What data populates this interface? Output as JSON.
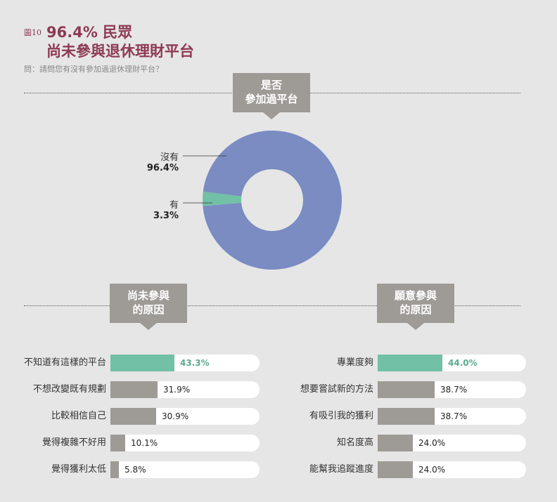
{
  "header": {
    "fig_label": "圖10",
    "title_line1": "96.4% 民眾",
    "title_line2": "尚未參與退休理財平台",
    "question": "問：請問您有沒有參加過退休理財平台？"
  },
  "colors": {
    "accent": "#8e3a54",
    "pie_no": "#7a8cc2",
    "pie_yes": "#72c0a6",
    "bar_highlight": "#72c0a6",
    "bar_default": "#9e9a96",
    "banner": "#9e9a96"
  },
  "banners": {
    "center_line1": "是否",
    "center_line2": "參加過平台",
    "left_line1": "尚未參與",
    "left_line2": "的原因",
    "right_line1": "願意參與",
    "right_line2": "的原因"
  },
  "chart_data": [
    {
      "type": "pie",
      "style": "donut",
      "title": "是否參加過平台",
      "categories": [
        "沒有",
        "有"
      ],
      "values": [
        96.4,
        3.3
      ],
      "value_labels": [
        "96.4%",
        "3.3%"
      ]
    },
    {
      "type": "bar",
      "orientation": "horizontal",
      "title": "尚未參與的原因",
      "categories": [
        "不知道有這樣的平台",
        "不想改變既有規劃",
        "比較相信自己",
        "覺得複雜不好用",
        "覺得獲利太低"
      ],
      "values": [
        43.3,
        31.9,
        30.9,
        10.1,
        5.8
      ],
      "value_labels": [
        "43.3%",
        "31.9%",
        "30.9%",
        "10.1%",
        "5.8%"
      ],
      "highlight_index": 0,
      "xlim": [
        0,
        100
      ]
    },
    {
      "type": "bar",
      "orientation": "horizontal",
      "title": "願意參與的原因",
      "categories": [
        "專業度夠",
        "想要嘗試新的方法",
        "有吸引我的獲利",
        "知名度高",
        "能幫我追蹤進度"
      ],
      "values": [
        44.0,
        38.7,
        38.7,
        24.0,
        24.0
      ],
      "value_labels": [
        "44.0%",
        "38.7%",
        "38.7%",
        "24.0%",
        "24.0%"
      ],
      "highlight_index": 0,
      "xlim": [
        0,
        100
      ]
    }
  ]
}
